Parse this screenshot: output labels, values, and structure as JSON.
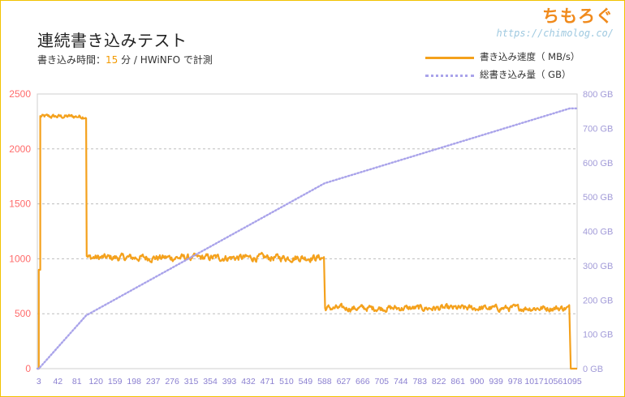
{
  "header": {
    "title": "連続書き込みテスト",
    "subtitle_prefix": "書き込み時間：",
    "subtitle_value": "15",
    "subtitle_suffix": " 分 / HWiNFO で計測"
  },
  "brand": {
    "name": "ちもろぐ",
    "url": "https://chimolog.co/"
  },
  "chart_data": {
    "type": "line",
    "legend_position": "top-right",
    "grid": true,
    "x_ticks": [
      3,
      42,
      81,
      120,
      159,
      198,
      237,
      276,
      315,
      354,
      393,
      432,
      471,
      510,
      549,
      588,
      627,
      666,
      705,
      744,
      783,
      822,
      861,
      900,
      939,
      978,
      1017,
      1056,
      1095
    ],
    "x_tick_labels": [
      "3",
      "42",
      "81",
      "120",
      "159",
      "198",
      "237",
      "276",
      "315",
      "354",
      "393",
      "432",
      "471",
      "510",
      "549",
      "588",
      "627",
      "666",
      "705",
      "744",
      "783",
      "822",
      "861",
      "900",
      "939",
      "978",
      "1017",
      "1056",
      "1095"
    ],
    "xlim": [
      0,
      1105
    ],
    "y_left": {
      "ylim": [
        0,
        2500
      ],
      "ticks": [
        "0",
        "500",
        "1000",
        "1500",
        "2000",
        "2500"
      ]
    },
    "y_right": {
      "ylim": [
        0,
        800
      ],
      "ticks": [
        "0 GB",
        "100 GB",
        "200 GB",
        "300 GB",
        "400 GB",
        "500 GB",
        "600 GB",
        "700 GB",
        "800 GB"
      ]
    },
    "series": [
      {
        "name": "書き込み速度（ MB/s）",
        "axis": "left",
        "color": "#f4a11c",
        "style": "solid",
        "segments": [
          {
            "x_start": 0,
            "x_end": 3,
            "mean": 0,
            "noise": 0
          },
          {
            "x_start": 3,
            "x_end": 6,
            "mean": 900,
            "noise": 0
          },
          {
            "x_start": 6,
            "x_end": 100,
            "mean": 2295,
            "noise": 15
          },
          {
            "x_start": 101,
            "x_end": 588,
            "mean": 1010,
            "noise": 25
          },
          {
            "x_start": 589,
            "x_end": 1090,
            "mean": 550,
            "noise": 22
          },
          {
            "x_start": 1092,
            "x_end": 1105,
            "mean": 0,
            "noise": 0
          }
        ]
      },
      {
        "name": "総書き込み量（ GB）",
        "axis": "right",
        "color": "#a9a3ea",
        "style": "dotted",
        "points": [
          [
            0,
            0
          ],
          [
            3,
            0
          ],
          [
            100,
            155
          ],
          [
            588,
            540
          ],
          [
            1090,
            758
          ],
          [
            1105,
            758
          ]
        ]
      }
    ]
  }
}
